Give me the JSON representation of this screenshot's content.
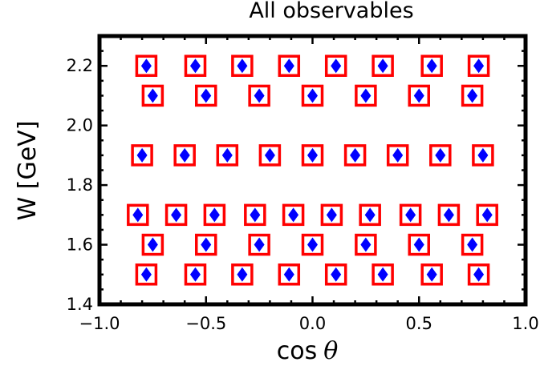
{
  "chart_data": {
    "type": "scatter",
    "title": "All observables",
    "xlabel": "cos",
    "xlabel_symbol": "θ",
    "ylabel": "W [GeV]",
    "xlim": [
      -1.0,
      1.0
    ],
    "ylim": [
      1.4,
      2.3
    ],
    "x_ticks": [
      -1.0,
      -0.5,
      0.0,
      0.5,
      1.0
    ],
    "x_tick_labels": [
      "−1.0",
      "−0.5",
      "0.0",
      "0.5",
      "1.0"
    ],
    "y_ticks": [
      1.4,
      1.6,
      1.8,
      2.0,
      2.2
    ],
    "y_tick_labels": [
      "1.4",
      "1.6",
      "1.8",
      "2.0",
      "2.2"
    ],
    "grid": false,
    "colors": {
      "square": "#ff0000",
      "diamond": "#0000ff",
      "frame": "#000000"
    },
    "series": [
      {
        "marker": "square",
        "points": [
          [
            -0.78,
            2.2
          ],
          [
            -0.55,
            2.2
          ],
          [
            -0.33,
            2.2
          ],
          [
            -0.11,
            2.2
          ],
          [
            0.11,
            2.2
          ],
          [
            0.33,
            2.2
          ],
          [
            0.56,
            2.2
          ],
          [
            0.78,
            2.2
          ],
          [
            -0.75,
            2.1
          ],
          [
            -0.5,
            2.1
          ],
          [
            -0.25,
            2.1
          ],
          [
            0.0,
            2.1
          ],
          [
            0.25,
            2.1
          ],
          [
            0.5,
            2.1
          ],
          [
            0.75,
            2.1
          ],
          [
            -0.8,
            1.9
          ],
          [
            -0.6,
            1.9
          ],
          [
            -0.4,
            1.9
          ],
          [
            -0.2,
            1.9
          ],
          [
            0.0,
            1.9
          ],
          [
            0.2,
            1.9
          ],
          [
            0.4,
            1.9
          ],
          [
            0.6,
            1.9
          ],
          [
            0.8,
            1.9
          ],
          [
            -0.82,
            1.7
          ],
          [
            -0.64,
            1.7
          ],
          [
            -0.46,
            1.7
          ],
          [
            -0.27,
            1.7
          ],
          [
            -0.09,
            1.7
          ],
          [
            0.09,
            1.7
          ],
          [
            0.27,
            1.7
          ],
          [
            0.46,
            1.7
          ],
          [
            0.64,
            1.7
          ],
          [
            0.82,
            1.7
          ],
          [
            -0.75,
            1.6
          ],
          [
            -0.5,
            1.6
          ],
          [
            -0.25,
            1.6
          ],
          [
            0.0,
            1.6
          ],
          [
            0.25,
            1.6
          ],
          [
            0.5,
            1.6
          ],
          [
            0.75,
            1.6
          ],
          [
            -0.78,
            1.5
          ],
          [
            -0.55,
            1.5
          ],
          [
            -0.33,
            1.5
          ],
          [
            -0.11,
            1.5
          ],
          [
            0.11,
            1.5
          ],
          [
            0.33,
            1.5
          ],
          [
            0.56,
            1.5
          ],
          [
            0.78,
            1.5
          ]
        ]
      },
      {
        "marker": "diamond",
        "points": [
          [
            -0.78,
            2.2
          ],
          [
            -0.55,
            2.2
          ],
          [
            -0.33,
            2.2
          ],
          [
            -0.11,
            2.2
          ],
          [
            0.11,
            2.2
          ],
          [
            0.33,
            2.2
          ],
          [
            0.56,
            2.2
          ],
          [
            0.78,
            2.2
          ],
          [
            -0.75,
            2.1
          ],
          [
            -0.5,
            2.1
          ],
          [
            -0.25,
            2.1
          ],
          [
            0.0,
            2.1
          ],
          [
            0.25,
            2.1
          ],
          [
            0.5,
            2.1
          ],
          [
            0.75,
            2.1
          ],
          [
            -0.8,
            1.9
          ],
          [
            -0.6,
            1.9
          ],
          [
            -0.4,
            1.9
          ],
          [
            -0.2,
            1.9
          ],
          [
            0.0,
            1.9
          ],
          [
            0.2,
            1.9
          ],
          [
            0.4,
            1.9
          ],
          [
            0.6,
            1.9
          ],
          [
            0.8,
            1.9
          ],
          [
            -0.82,
            1.7
          ],
          [
            -0.64,
            1.7
          ],
          [
            -0.46,
            1.7
          ],
          [
            -0.27,
            1.7
          ],
          [
            -0.09,
            1.7
          ],
          [
            0.09,
            1.7
          ],
          [
            0.27,
            1.7
          ],
          [
            0.46,
            1.7
          ],
          [
            0.64,
            1.7
          ],
          [
            0.82,
            1.7
          ],
          [
            -0.75,
            1.6
          ],
          [
            -0.5,
            1.6
          ],
          [
            -0.25,
            1.6
          ],
          [
            0.0,
            1.6
          ],
          [
            0.25,
            1.6
          ],
          [
            0.5,
            1.6
          ],
          [
            0.75,
            1.6
          ],
          [
            -0.78,
            1.5
          ],
          [
            -0.55,
            1.5
          ],
          [
            -0.33,
            1.5
          ],
          [
            -0.11,
            1.5
          ],
          [
            0.11,
            1.5
          ],
          [
            0.33,
            1.5
          ],
          [
            0.56,
            1.5
          ],
          [
            0.78,
            1.5
          ]
        ]
      }
    ]
  }
}
